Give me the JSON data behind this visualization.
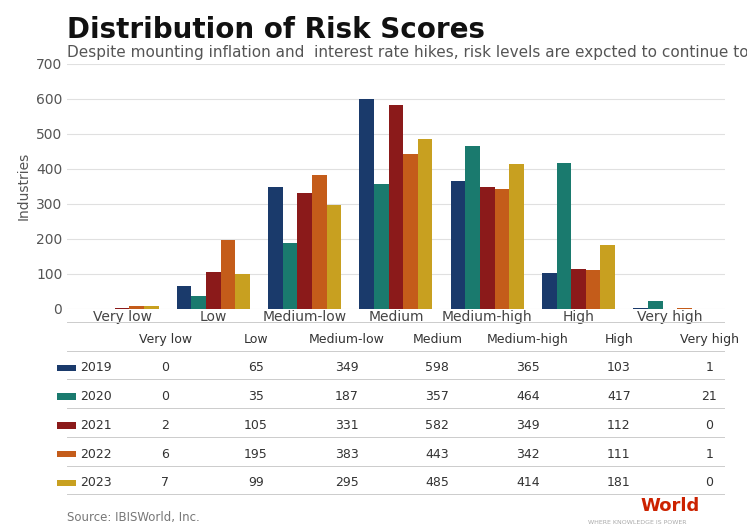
{
  "title": "Distribution of Risk Scores",
  "subtitle": "Despite mounting inflation and  interest rate hikes, risk levels are expcted to continue to improve",
  "ylabel": "Industries",
  "source": "Source: IBISWorld, Inc.",
  "categories": [
    "Very low",
    "Low",
    "Medium-low",
    "Medium",
    "Medium-high",
    "High",
    "Very high"
  ],
  "years": [
    "2019",
    "2020",
    "2021",
    "2022",
    "2023"
  ],
  "colors": [
    "#1a3a6b",
    "#1a7a6e",
    "#8b1a1a",
    "#c45c1a",
    "#c8a020"
  ],
  "data": {
    "2019": [
      0,
      65,
      349,
      598,
      365,
      103,
      1
    ],
    "2020": [
      0,
      35,
      187,
      357,
      464,
      417,
      21
    ],
    "2021": [
      2,
      105,
      331,
      582,
      349,
      112,
      0
    ],
    "2022": [
      6,
      195,
      383,
      443,
      342,
      111,
      1
    ],
    "2023": [
      7,
      99,
      295,
      485,
      414,
      181,
      0
    ]
  },
  "ylim": [
    0,
    700
  ],
  "yticks": [
    0,
    100,
    200,
    300,
    400,
    500,
    600,
    700
  ],
  "table_rows": [
    [
      "2019",
      "0",
      "65",
      "349",
      "598",
      "365",
      "103",
      "1"
    ],
    [
      "2020",
      "0",
      "35",
      "187",
      "357",
      "464",
      "417",
      "21"
    ],
    [
      "2021",
      "2",
      "105",
      "331",
      "582",
      "349",
      "112",
      "0"
    ],
    [
      "2022",
      "6",
      "195",
      "383",
      "443",
      "342",
      "111",
      "1"
    ],
    [
      "2023",
      "7",
      "99",
      "295",
      "485",
      "414",
      "181",
      "0"
    ]
  ],
  "background_color": "#ffffff",
  "grid_color": "#e0e0e0",
  "title_fontsize": 20,
  "subtitle_fontsize": 11,
  "axis_fontsize": 10,
  "table_fontsize": 9
}
